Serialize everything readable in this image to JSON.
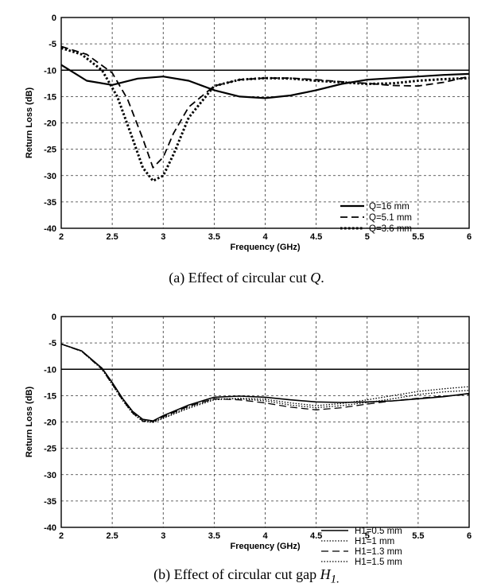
{
  "chart_data": [
    {
      "type": "line",
      "caption": {
        "prefix": "(a) Effect of circular cut ",
        "symbol": "Q",
        "suffix": "."
      },
      "xlabel": "Frequency (GHz)",
      "ylabel": "Return Loss (dB)",
      "xlim": [
        2,
        6
      ],
      "ylim": [
        -40,
        0
      ],
      "xticks": [
        "2",
        "2.5",
        "3",
        "3.5",
        "4",
        "4.5",
        "5",
        "5.5",
        "6"
      ],
      "yticks": [
        "0",
        "-5",
        "-10",
        "-15",
        "-20",
        "-25",
        "-30",
        "-35",
        "-40"
      ],
      "grid": true,
      "legend_position": "bottom-right",
      "reference_line": -10,
      "series": [
        {
          "name": "Q=16 mm",
          "style": "solid",
          "x": [
            2.0,
            2.25,
            2.5,
            2.75,
            3.0,
            3.25,
            3.5,
            3.75,
            4.0,
            4.25,
            4.5,
            4.75,
            5.0,
            5.25,
            5.5,
            5.75,
            6.0
          ],
          "values": [
            -9.0,
            -12.0,
            -12.8,
            -11.6,
            -11.2,
            -12.0,
            -13.8,
            -15.0,
            -15.3,
            -14.8,
            -13.8,
            -12.6,
            -11.8,
            -11.5,
            -11.2,
            -10.9,
            -10.7
          ]
        },
        {
          "name": "Q=5.1 mm",
          "style": "dashed",
          "x": [
            2.0,
            2.25,
            2.5,
            2.65,
            2.8,
            2.9,
            3.0,
            3.1,
            3.25,
            3.5,
            3.75,
            4.0,
            4.25,
            4.5,
            4.75,
            5.0,
            5.25,
            5.5,
            5.75,
            6.0
          ],
          "values": [
            -5.5,
            -7.0,
            -10.5,
            -15.5,
            -23.0,
            -28.5,
            -26.5,
            -22.0,
            -17.0,
            -13.0,
            -11.8,
            -11.5,
            -11.5,
            -11.8,
            -12.2,
            -12.5,
            -12.9,
            -13.0,
            -12.3,
            -11.2
          ]
        },
        {
          "name": "Q=3.6 mm",
          "style": "dotted",
          "x": [
            2.0,
            2.2,
            2.4,
            2.55,
            2.7,
            2.8,
            2.9,
            3.0,
            3.1,
            3.25,
            3.5,
            3.75,
            4.0,
            4.25,
            4.5,
            4.75,
            5.0,
            5.25,
            5.5,
            5.75,
            6.0
          ],
          "values": [
            -5.8,
            -7.0,
            -10.0,
            -15.0,
            -23.0,
            -28.5,
            -31.0,
            -30.0,
            -26.0,
            -19.0,
            -13.0,
            -11.8,
            -11.5,
            -11.6,
            -12.0,
            -12.3,
            -12.6,
            -12.5,
            -12.0,
            -11.7,
            -11.5
          ]
        }
      ]
    },
    {
      "type": "line",
      "caption": {
        "prefix": "(b) Effect of circular cut gap ",
        "symbol": "H",
        "subscript": "1."
      },
      "xlabel": "Frequency (GHz)",
      "ylabel": "Return Loss (dB)",
      "xlim": [
        2,
        6
      ],
      "ylim": [
        -40,
        0
      ],
      "xticks": [
        "2",
        "2.5",
        "3",
        "3.5",
        "4",
        "4.5",
        "5",
        "5.5",
        "6"
      ],
      "yticks": [
        "0",
        "-5",
        "-10",
        "-15",
        "-20",
        "-25",
        "-30",
        "-35",
        "-40"
      ],
      "grid": true,
      "legend_position": "bottom-right",
      "reference_line": -10,
      "series": [
        {
          "name": "H1=0.5 mm",
          "style": "solid",
          "x": [
            2.0,
            2.2,
            2.4,
            2.5,
            2.6,
            2.7,
            2.8,
            2.9,
            3.0,
            3.25,
            3.5,
            3.75,
            4.0,
            4.25,
            4.5,
            4.75,
            5.0,
            5.25,
            5.5,
            5.75,
            6.0
          ],
          "values": [
            -5.2,
            -6.5,
            -9.8,
            -12.5,
            -15.5,
            -18.0,
            -19.5,
            -19.8,
            -18.8,
            -16.8,
            -15.3,
            -15.1,
            -15.3,
            -15.8,
            -16.2,
            -16.3,
            -16.2,
            -16.0,
            -15.6,
            -15.2,
            -14.6
          ]
        },
        {
          "name": "H1=1 mm",
          "style": "dotted",
          "x": [
            2.0,
            2.2,
            2.4,
            2.5,
            2.6,
            2.7,
            2.8,
            2.9,
            3.0,
            3.25,
            3.5,
            3.75,
            4.0,
            4.25,
            4.5,
            4.75,
            5.0,
            5.25,
            5.5,
            5.75,
            6.0
          ],
          "values": [
            -5.2,
            -6.6,
            -10.0,
            -12.8,
            -15.8,
            -18.2,
            -19.8,
            -20.0,
            -19.2,
            -17.2,
            -15.6,
            -15.6,
            -16.0,
            -16.8,
            -17.3,
            -16.9,
            -16.3,
            -15.6,
            -14.8,
            -14.3,
            -14.0
          ]
        },
        {
          "name": "H1=1.3 mm",
          "style": "dashed",
          "x": [
            2.0,
            2.2,
            2.4,
            2.5,
            2.6,
            2.7,
            2.8,
            2.9,
            3.0,
            3.25,
            3.5,
            3.75,
            4.0,
            4.25,
            4.5,
            4.75,
            5.0,
            5.25,
            5.5,
            5.75,
            6.0
          ],
          "values": [
            -5.2,
            -6.6,
            -10.0,
            -12.8,
            -15.8,
            -18.3,
            -19.8,
            -19.9,
            -19.0,
            -17.0,
            -15.6,
            -15.8,
            -16.4,
            -17.2,
            -17.7,
            -17.3,
            -16.6,
            -16.0,
            -15.5,
            -15.1,
            -14.8
          ]
        },
        {
          "name": "H1=1.5 mm",
          "style": "dotted",
          "x": [
            2.0,
            2.2,
            2.4,
            2.5,
            2.6,
            2.7,
            2.8,
            2.9,
            3.0,
            3.25,
            3.5,
            3.75,
            4.0,
            4.25,
            4.5,
            4.75,
            5.0,
            5.25,
            5.5,
            5.75,
            6.0
          ],
          "values": [
            -5.2,
            -6.6,
            -10.0,
            -12.9,
            -15.9,
            -18.4,
            -19.9,
            -20.1,
            -19.3,
            -17.4,
            -15.8,
            -15.5,
            -15.7,
            -16.4,
            -16.9,
            -16.5,
            -15.8,
            -15.0,
            -14.2,
            -13.7,
            -13.3
          ]
        }
      ]
    }
  ]
}
